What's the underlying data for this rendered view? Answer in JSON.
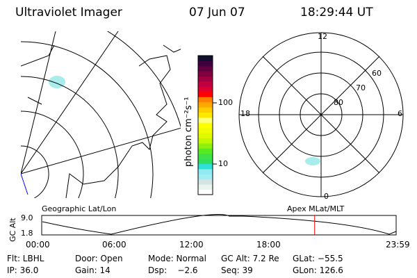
{
  "header": {
    "title": "Ultraviolet Imager",
    "date": "07 Jun 07",
    "time": "18:29:44 UT"
  },
  "colorbar": {
    "label": "photon cm⁻²s⁻¹",
    "ticks": [
      "100",
      "10"
    ],
    "colors": [
      "#ffffff",
      "#e8f4ee",
      "#d4e4e2",
      "#a0eef4",
      "#90eaf0",
      "#2ee0d8",
      "#30de60",
      "#40e048",
      "#58ea20",
      "#90f010",
      "#c0f800",
      "#e0f800",
      "#f0fc00",
      "#ffff00",
      "#ffff80",
      "#ffe800",
      "#ffcc00",
      "#ffa800",
      "#ff8000",
      "#ff0000",
      "#e00030",
      "#c00040",
      "#a00040",
      "#800040",
      "#600040",
      "#400040",
      "#101030"
    ]
  },
  "polar": {
    "labels": {
      "top": "12",
      "bottom": "0",
      "left": "18",
      "right": "6"
    },
    "rings": [
      "80",
      "70",
      "60"
    ]
  },
  "map": {
    "left_label": "Geographic Lat/Lon",
    "right_label": "Apex MLat/MLT"
  },
  "altitude": {
    "ylabel": "GC Alt",
    "yticks": [
      "9.0",
      "1.8"
    ],
    "xticks": [
      "00:00",
      "06:00",
      "12:00",
      "18:00",
      "23:59"
    ],
    "current_time_fraction": 0.77,
    "marker_color": "#ff0000"
  },
  "status": {
    "flt": "Flt: LBHL",
    "door": "Door: Open",
    "mode": "Mode: Normal",
    "gcalt": "GC Alt: 7.2 Re",
    "glat": "GLat: −55.5",
    "ip": "IP: 36.0",
    "gain": "Gain: 14",
    "dsp": "Dsp:    −2.6",
    "seq": "Seq: 39",
    "glon": "GLon: 126.6"
  }
}
